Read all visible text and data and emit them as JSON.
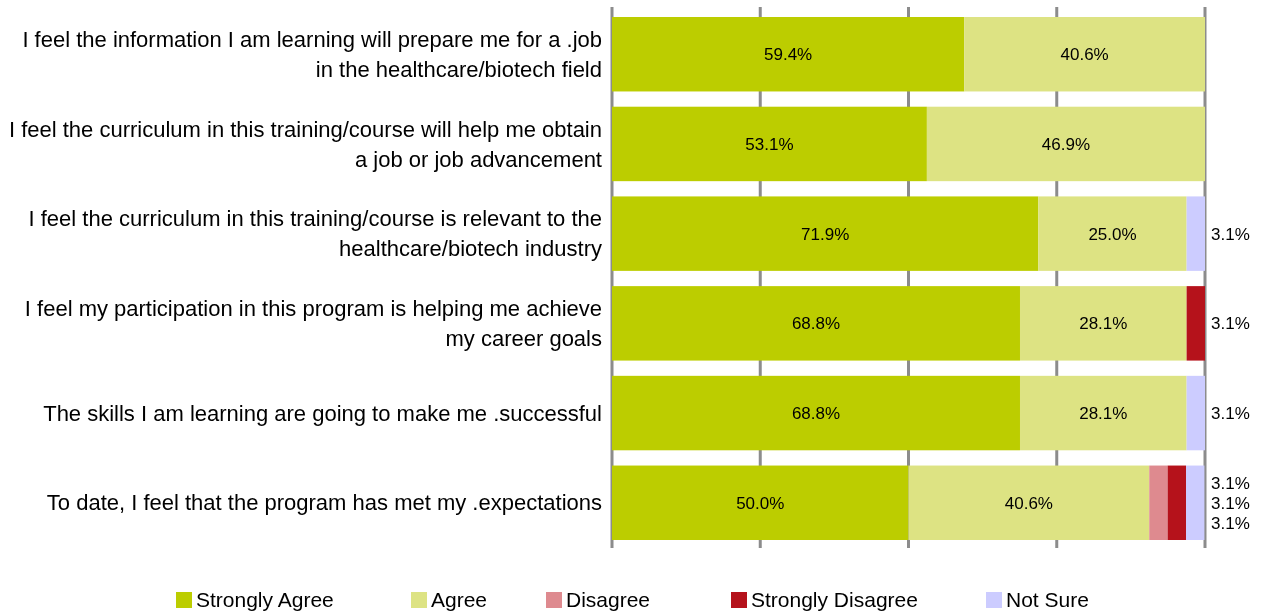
{
  "chart_data": {
    "type": "bar",
    "orientation": "horizontal",
    "stacked": true,
    "categories": [
      "I feel the information I am learning will prepare me for a .job in the healthcare/biotech field",
      "I feel the curriculum in this training/course will help me obtain a job or job advancement",
      "I feel the curriculum in this training/course is relevant to the healthcare/biotech industry",
      "I feel my participation in this program is helping me achieve my career goals",
      "The skills I am learning are going to make me .successful",
      "To date, I feel that the program has met my .expectations"
    ],
    "series": [
      {
        "name": "Strongly Agree",
        "color": "#bccd00",
        "values": [
          59.4,
          53.1,
          71.9,
          68.8,
          68.8,
          50.0
        ],
        "value_labels": [
          "59.4%",
          "53.1%",
          "71.9%",
          "68.8%",
          "68.8%",
          "50.0%"
        ]
      },
      {
        "name": "Agree",
        "color": "#dde383",
        "values": [
          40.6,
          46.9,
          25.0,
          28.1,
          28.1,
          40.6
        ],
        "value_labels": [
          "40.6%",
          "46.9%",
          "25.0%",
          "28.1%",
          "28.1%",
          "40.6%"
        ]
      },
      {
        "name": "Disagree",
        "color": "#de8a8f",
        "values": [
          null,
          null,
          null,
          null,
          null,
          3.1
        ],
        "value_labels": [
          null,
          null,
          null,
          null,
          null,
          "3.1%"
        ]
      },
      {
        "name": "Strongly Disagree",
        "color": "#b5121b",
        "values": [
          null,
          null,
          null,
          3.1,
          null,
          3.1
        ],
        "value_labels": [
          null,
          null,
          null,
          "3.1%",
          null,
          "3.1%"
        ]
      },
      {
        "name": "Not Sure",
        "color": "#ccccff",
        "values": [
          null,
          null,
          3.1,
          null,
          3.1,
          3.1
        ],
        "value_labels": [
          null,
          null,
          "3.1%",
          null,
          "3.1%",
          "3.1%"
        ]
      }
    ],
    "xlim": [
      0,
      100
    ],
    "xticks": [
      {
        "value": 0,
        "label": null
      },
      {
        "value": 25,
        "label": null
      },
      {
        "value": 50,
        "label": null
      },
      {
        "value": 75,
        "label": null
      },
      {
        "value": 100,
        "label": null
      }
    ],
    "tick_labels": "y",
    "grid": "x",
    "legend": "bottom"
  }
}
